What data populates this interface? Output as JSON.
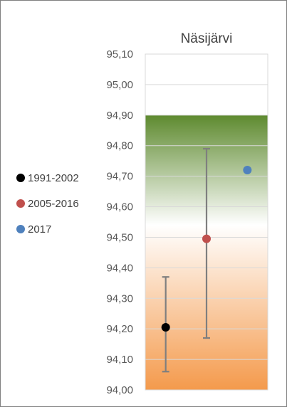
{
  "chart_data": {
    "type": "scatter",
    "title": "Näsijärvi",
    "xlabel": "",
    "ylabel": "",
    "ylim": [
      94.0,
      95.1
    ],
    "yticks": [
      {
        "value": 94.0,
        "label": "94,00"
      },
      {
        "value": 94.1,
        "label": "94,10"
      },
      {
        "value": 94.2,
        "label": "94,20"
      },
      {
        "value": 94.3,
        "label": "94,30"
      },
      {
        "value": 94.4,
        "label": "94,40"
      },
      {
        "value": 94.5,
        "label": "94,50"
      },
      {
        "value": 94.6,
        "label": "94,60"
      },
      {
        "value": 94.7,
        "label": "94,70"
      },
      {
        "value": 94.8,
        "label": "94,80"
      },
      {
        "value": 94.9,
        "label": "94,90"
      },
      {
        "value": 95.0,
        "label": "95,00"
      },
      {
        "value": 95.1,
        "label": "95,10"
      }
    ],
    "background_band": {
      "from": 94.0,
      "to": 94.9,
      "colors": {
        "top": "#5e8a2f",
        "middle": "#ffffff",
        "bottom": "#f49a4c"
      }
    },
    "series": [
      {
        "name": "1991-2002",
        "color": "#000000",
        "x": 1,
        "y": 94.205,
        "y_min": 94.06,
        "y_max": 94.37
      },
      {
        "name": "2005-2016",
        "color": "#c0504d",
        "x": 2,
        "y": 94.495,
        "y_min": 94.17,
        "y_max": 94.79
      },
      {
        "name": "2017",
        "color": "#4f81bd",
        "x": 3,
        "y": 94.72
      }
    ],
    "error_bar_color": "#7f7f7f",
    "grid": true,
    "legend_position": "left"
  }
}
